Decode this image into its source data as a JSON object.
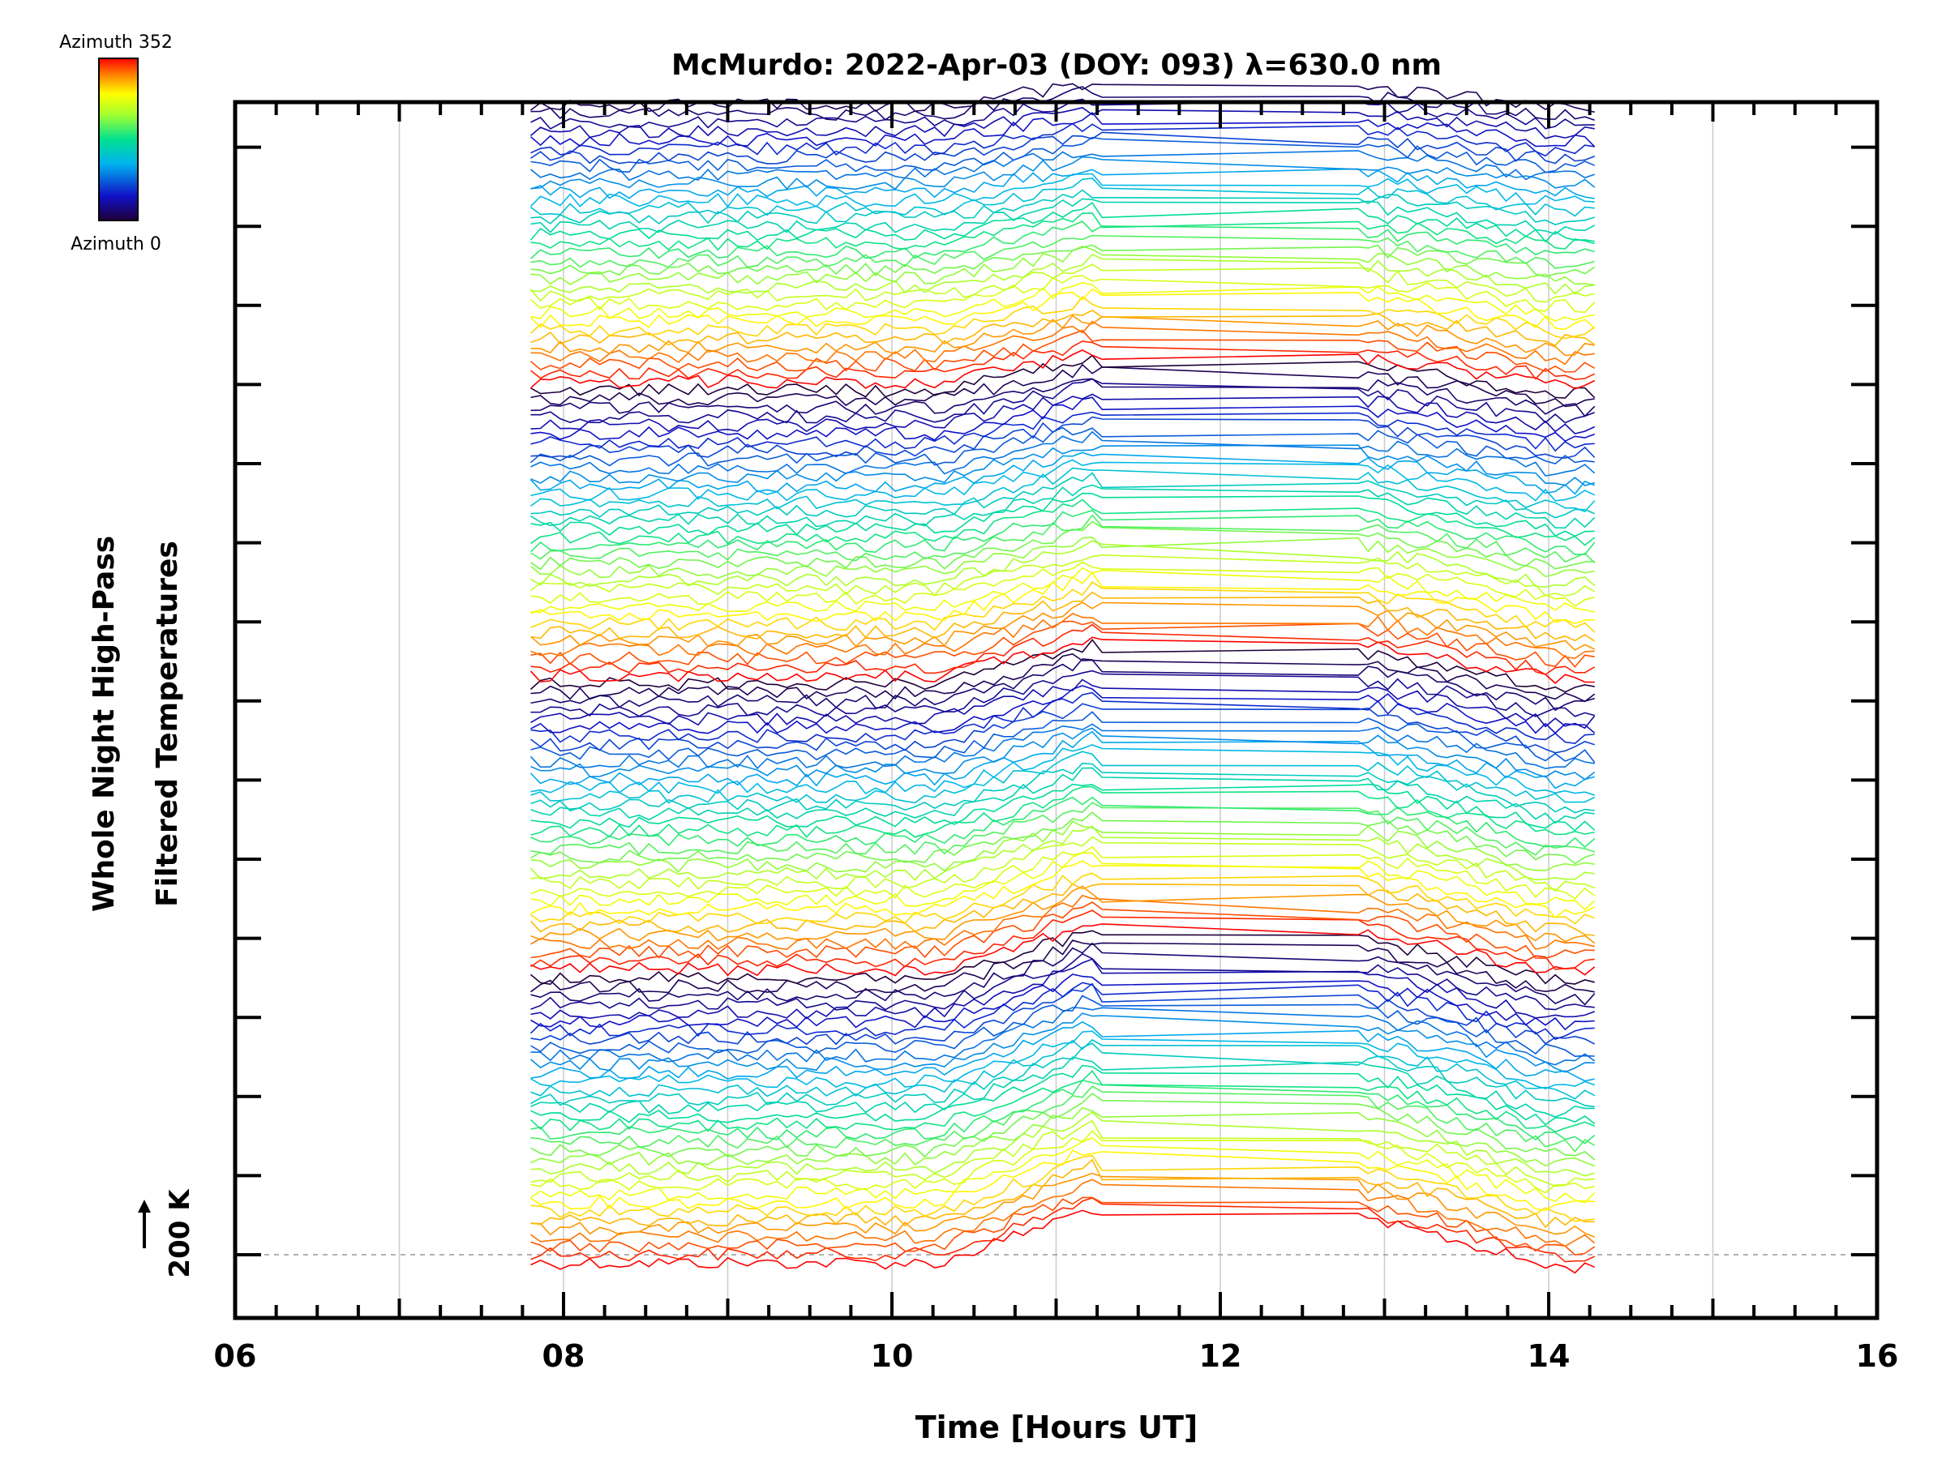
{
  "chart_data": {
    "type": "line",
    "title": "McMurdo: 2022-Apr-03 (DOY: 093) λ=630.0 nm",
    "xlabel": "Time [Hours UT]",
    "ylabel_line1": "Whole Night High-Pass",
    "ylabel_line2": "Filtered Temperatures",
    "xlim": [
      6,
      16
    ],
    "x_ticks": [
      "06",
      "08",
      "10",
      "12",
      "14",
      "16"
    ],
    "x_grid": [
      7,
      8,
      9,
      10,
      11,
      12,
      13,
      14,
      15
    ],
    "grid": true,
    "scale_bar_label": "200 K",
    "colorbar": {
      "top_label": "Azimuth 352",
      "bottom_label": "Azimuth 0",
      "colors": [
        "#200040",
        "#1010c0",
        "#00b0f0",
        "#00e080",
        "#a0ff30",
        "#ffff00",
        "#ff8000",
        "#ff0000"
      ]
    },
    "data_range_hours": [
      7.8,
      14.33
    ],
    "gap_hours": [
      11.3,
      12.8
    ],
    "n_traces": 135,
    "series_note": "Stacked high-pass filtered temperature traces, one per azimuth, colored by azimuth (0–352)."
  }
}
